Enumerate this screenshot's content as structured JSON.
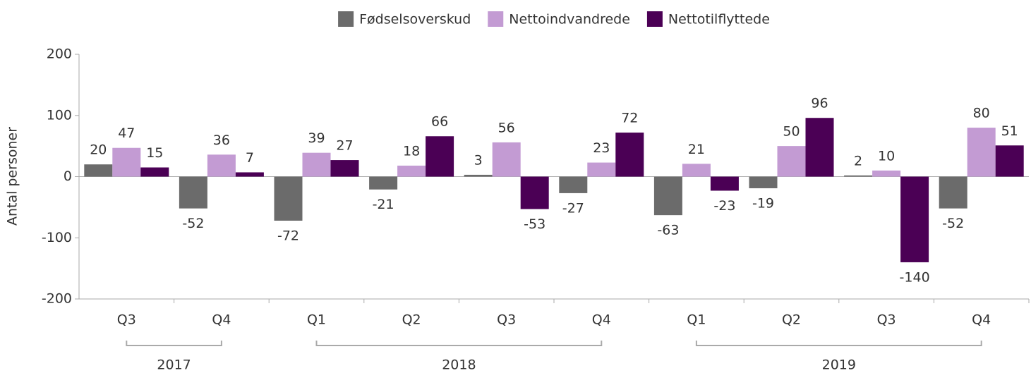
{
  "chart_data": {
    "type": "bar",
    "y_label": "Antal personer",
    "categories": [
      "Q3",
      "Q4",
      "Q1",
      "Q2",
      "Q3",
      "Q4",
      "Q1",
      "Q2",
      "Q3",
      "Q4"
    ],
    "groups": [
      {
        "label": "2017",
        "count": 2
      },
      {
        "label": "2018",
        "count": 4
      },
      {
        "label": "2019",
        "count": 4
      }
    ],
    "series": [
      {
        "name": "Fødselsoverskud",
        "color": "#6b6b6b",
        "values": [
          20,
          -52,
          -72,
          -21,
          3,
          -27,
          -63,
          -19,
          2,
          -52
        ]
      },
      {
        "name": "Nettoindvandrede",
        "color": "#c39bd3",
        "values": [
          47,
          36,
          39,
          18,
          56,
          23,
          21,
          50,
          10,
          80
        ]
      },
      {
        "name": "Nettotilflyttede",
        "color": "#4b0055",
        "values": [
          15,
          7,
          27,
          66,
          -53,
          72,
          -23,
          96,
          -140,
          51
        ]
      }
    ],
    "ylim": [
      -200,
      200
    ],
    "yticks": [
      -200,
      -100,
      0,
      100,
      200
    ],
    "legend": "top"
  }
}
